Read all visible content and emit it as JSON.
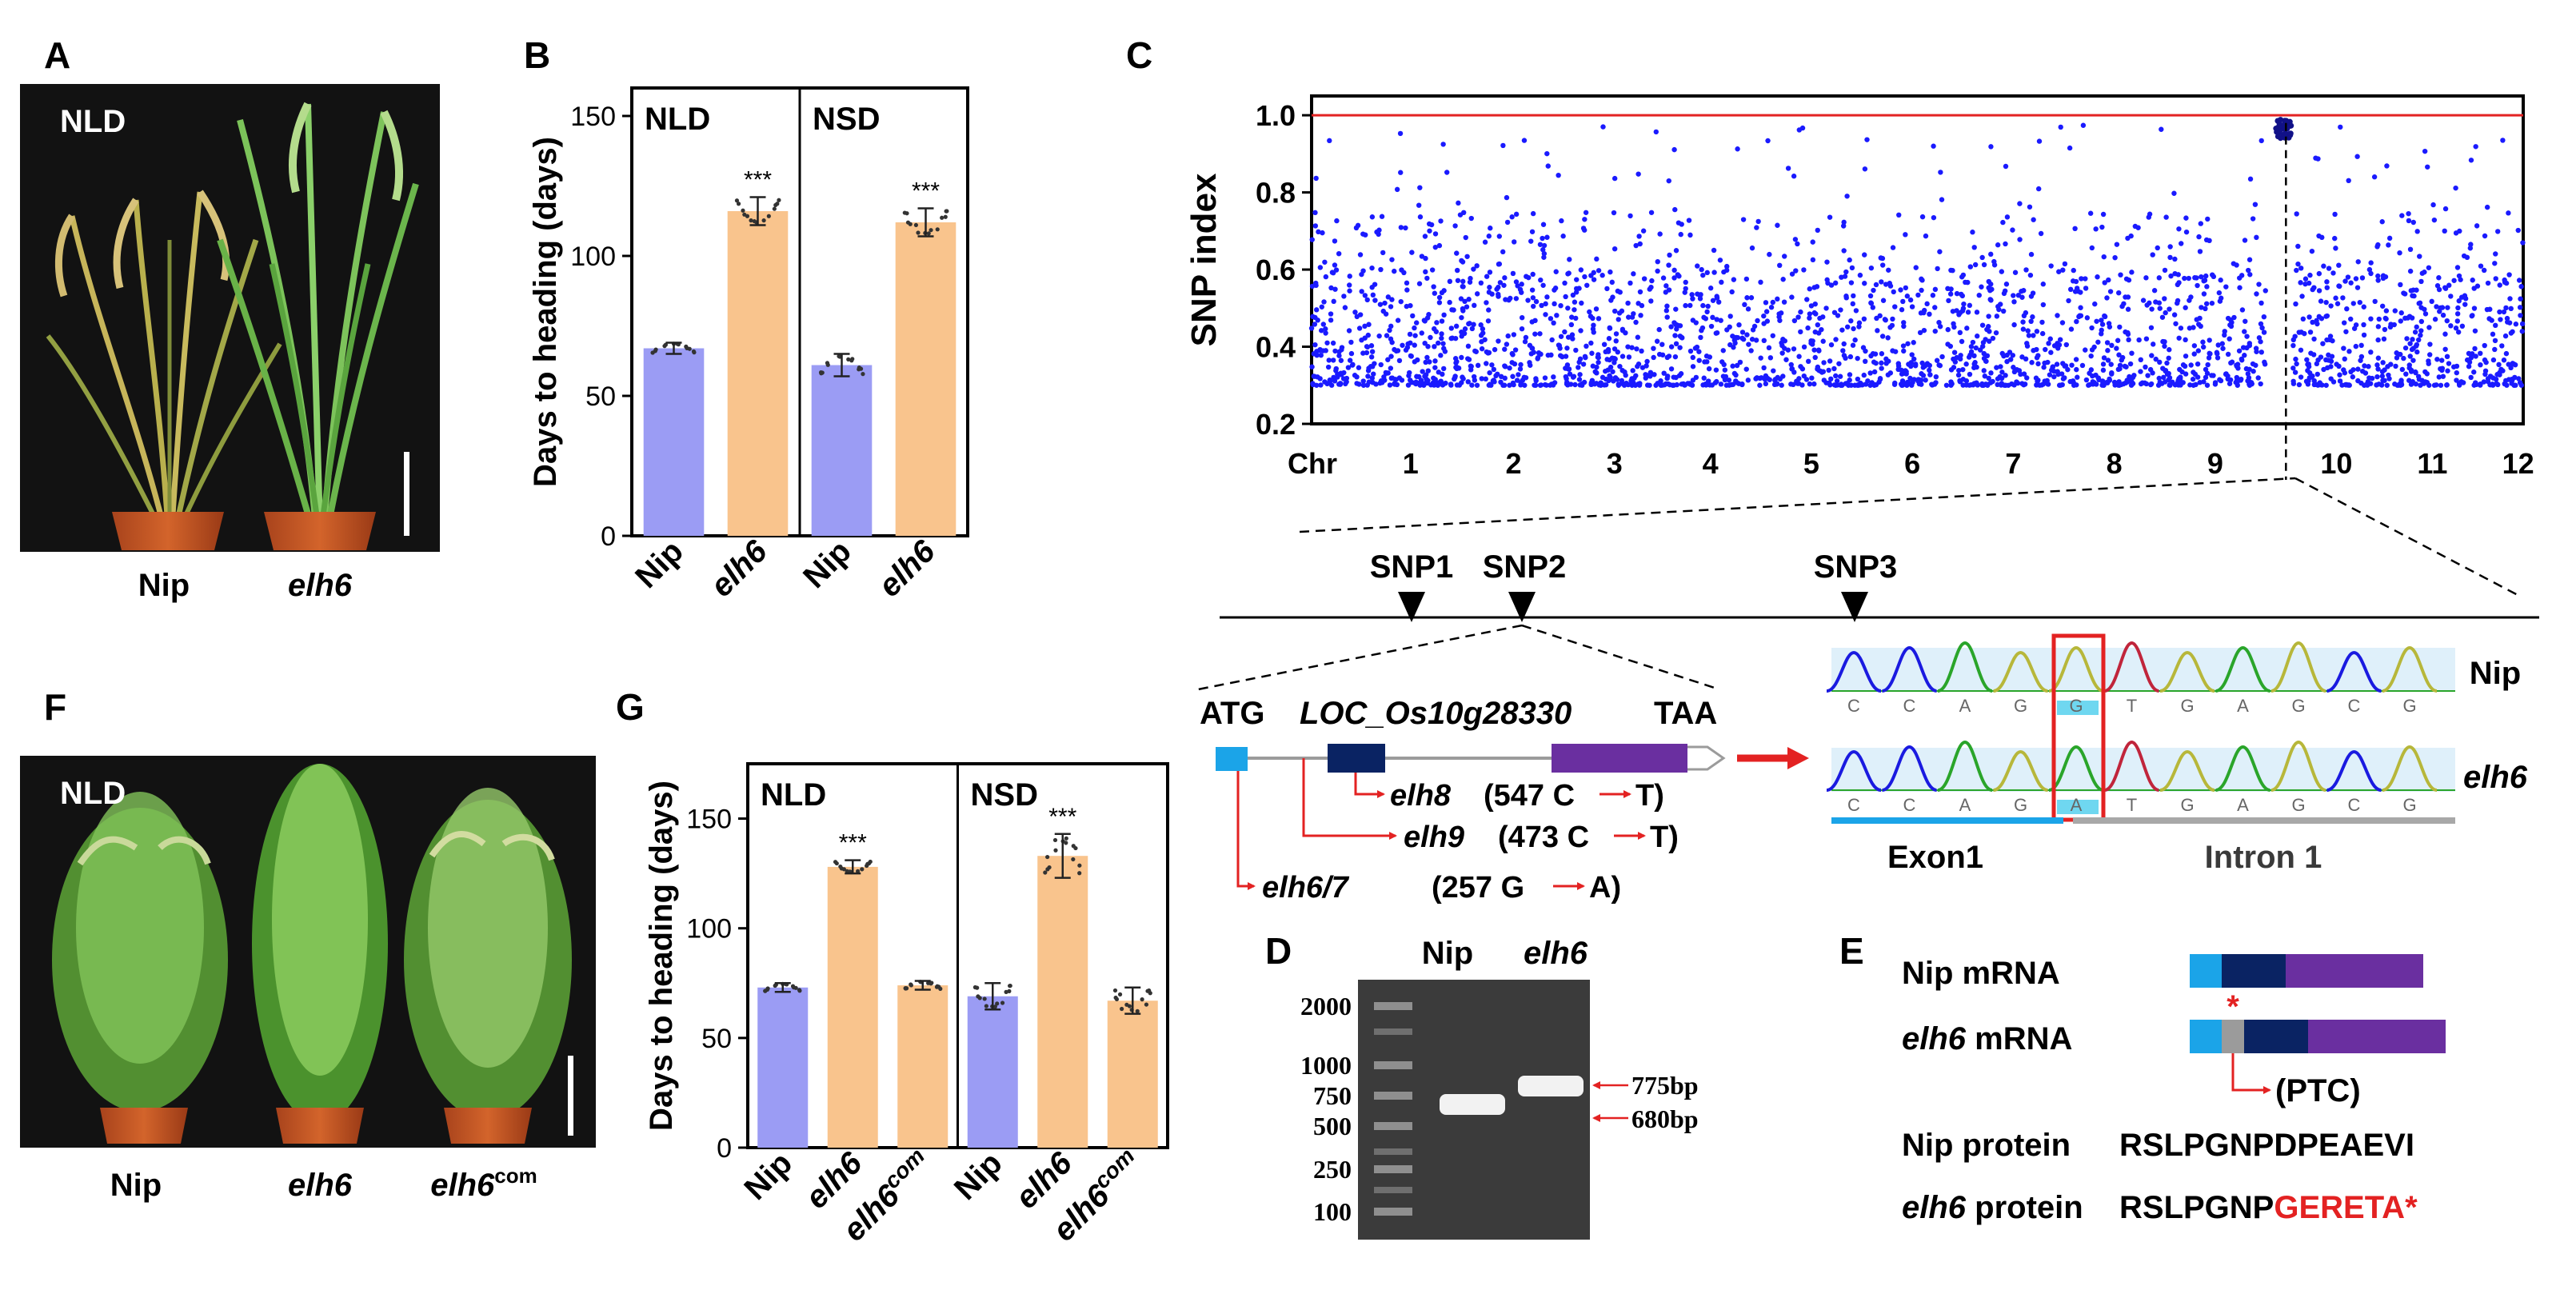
{
  "panels": {
    "A": {
      "letter": "A",
      "condition": "NLD",
      "plants": [
        "Nip",
        "elh6"
      ]
    },
    "B": {
      "letter": "B",
      "ylabel": "Days to heading (days)",
      "groups": [
        "NLD",
        "NSD"
      ],
      "categories": [
        "Nip",
        "elh6",
        "Nip",
        "elh6"
      ],
      "stars": "***"
    },
    "C": {
      "letter": "C",
      "ylabel": "SNP index",
      "xlabel": "Chr",
      "snps": [
        "SNP1",
        "SNP2",
        "SNP3"
      ],
      "gene_start": "ATG",
      "gene_name": "LOC_Os10g28330",
      "gene_end": "TAA",
      "alleles": [
        {
          "name": "elh8",
          "change": "(547 C",
          "to": "T)"
        },
        {
          "name": "elh9",
          "change": "(473 C",
          "to": "T)"
        },
        {
          "name": "elh6/7",
          "change": "(257 G",
          "to": "A)"
        }
      ],
      "seq_top_label": "Nip",
      "seq_bottom_label": "elh6",
      "seq_bases_top": [
        "C",
        "C",
        "A",
        "G",
        "G",
        "T",
        "G",
        "A",
        "G",
        "C",
        "G"
      ],
      "seq_bases_bottom": [
        "C",
        "C",
        "A",
        "G",
        "A",
        "T",
        "G",
        "A",
        "G",
        "C",
        "G"
      ],
      "exon_label": "Exon1",
      "intron_label": "Intron 1"
    },
    "D": {
      "letter": "D",
      "lanes": [
        "Nip",
        "elh6"
      ],
      "ladder": [
        "2000",
        "1000",
        "750",
        "500",
        "250",
        "100"
      ],
      "band_labels": [
        "775bp",
        "680bp"
      ]
    },
    "E": {
      "letter": "E",
      "mrna_labels": [
        "Nip mRNA",
        "elh6 mRNA"
      ],
      "ptc_label": "(PTC)",
      "protein_rows": [
        {
          "label_italic": "",
          "label": "Nip protein",
          "seq": "RSLPGNPDPEAEVI",
          "seq_red": ""
        },
        {
          "label_italic": "elh6",
          "label": " protein",
          "seq": "RSLPGNP",
          "seq_red": "GERETA*"
        }
      ]
    },
    "F": {
      "letter": "F",
      "condition": "NLD",
      "plants": [
        "Nip",
        "elh6",
        "elh6"
      ],
      "com_sup": "com"
    },
    "G": {
      "letter": "G",
      "ylabel": "Days to heading (days)",
      "groups": [
        "NLD",
        "NSD"
      ],
      "categories": [
        "Nip",
        "elh6",
        "elh6",
        "Nip",
        "elh6",
        "elh6"
      ],
      "com_sup": "com",
      "stars": "***"
    }
  },
  "chart_data": [
    {
      "id": "B",
      "type": "bar",
      "title": "",
      "ylabel": "Days to heading (days)",
      "ylim": [
        0,
        160
      ],
      "yticks": [
        "0",
        "50",
        "100",
        "150"
      ],
      "categories": [
        "Nip",
        "elh6",
        "Nip",
        "elh6"
      ],
      "groups": [
        "NLD",
        "NLD",
        "NSD",
        "NSD"
      ],
      "values": [
        67,
        116,
        61,
        112
      ],
      "errors": [
        2,
        5,
        4,
        5
      ],
      "significance": [
        "",
        "***",
        "",
        "***"
      ],
      "colors": [
        "#9b9cf4",
        "#f9c48d",
        "#9b9cf4",
        "#f9c48d"
      ]
    },
    {
      "id": "G",
      "type": "bar",
      "title": "",
      "ylabel": "Days to heading (days)",
      "ylim": [
        0,
        175
      ],
      "yticks": [
        "0",
        "50",
        "100",
        "150"
      ],
      "categories": [
        "Nip",
        "elh6",
        "elh6com",
        "Nip",
        "elh6",
        "elh6com"
      ],
      "groups": [
        "NLD",
        "NLD",
        "NLD",
        "NSD",
        "NSD",
        "NSD"
      ],
      "values": [
        73,
        128,
        74,
        69,
        133,
        67
      ],
      "errors": [
        2,
        3,
        2,
        6,
        10,
        6
      ],
      "significance": [
        "",
        "***",
        "",
        "",
        "***",
        ""
      ],
      "colors": [
        "#9b9cf4",
        "#f9c48d",
        "#f9c48d",
        "#9b9cf4",
        "#f9c48d",
        "#f9c48d"
      ]
    },
    {
      "id": "C",
      "type": "scatter",
      "title": "",
      "xlabel": "Chr",
      "ylabel": "SNP index",
      "ylim": [
        0.2,
        1.05
      ],
      "xlim": [
        0,
        12
      ],
      "yticks": [
        "0.2",
        "0.4",
        "0.6",
        "0.8",
        "1.0"
      ],
      "xticks": [
        "1",
        "2",
        "3",
        "4",
        "5",
        "6",
        "7",
        "8",
        "9",
        "10",
        "11",
        "12"
      ],
      "threshold": 1.0,
      "peak_chr": 9.65,
      "series": [
        {
          "name": "SNP index",
          "color": "#1a1aff"
        }
      ]
    }
  ],
  "colors": {
    "nip_bar": "#9b9cf4",
    "elh6_bar": "#f9c48d",
    "snp_dot": "#1a1aff",
    "threshold": "#e32222",
    "arrow_red": "#e32222",
    "exon_light": "#1ba4e8",
    "exon_dark": "#0a2363",
    "exon_purple": "#6a2fa0",
    "ptc_grey": "#9b9b9b",
    "intron_grey": "#a8a8a8"
  }
}
